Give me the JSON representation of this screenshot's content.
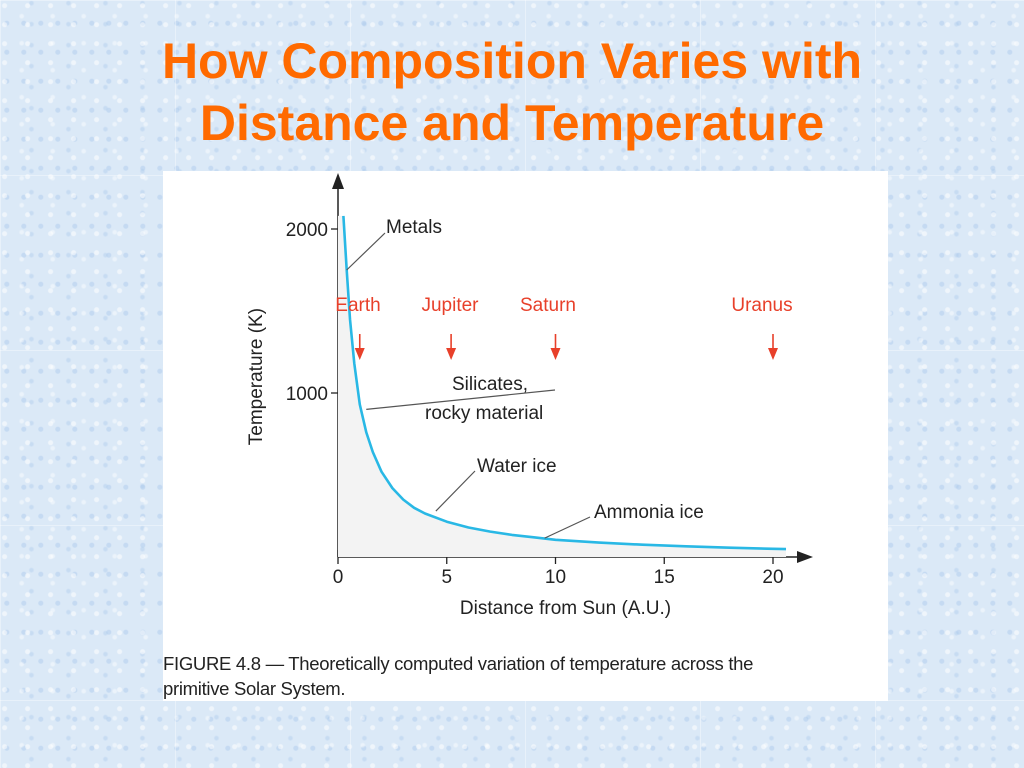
{
  "slide": {
    "title_line1": "How Composition Varies with",
    "title_line2": "Distance and Temperature",
    "title_color": "#ff6a00"
  },
  "figure": {
    "caption_line1": "FIGURE 4.8 — Theoretically computed variation of temperature across the",
    "caption_line2": "primitive Solar System."
  },
  "chart_data": {
    "type": "line",
    "title": "",
    "xlabel": "Distance from Sun (A.U.)",
    "ylabel": "Temperature (K)",
    "xlim": [
      0,
      21
    ],
    "ylim": [
      0,
      2100
    ],
    "x_ticks": [
      0,
      5,
      10,
      15,
      20
    ],
    "y_ticks": [
      1000,
      2000
    ],
    "grid": false,
    "line_color": "#29b8e5",
    "series": [
      {
        "x": [
          0.25,
          0.4,
          0.55,
          0.75,
          1.0,
          1.3,
          1.6,
          2.0,
          2.5,
          3.0,
          3.5,
          4.0,
          5.0,
          6.0,
          7.0,
          8.0,
          9.0,
          10.0,
          12.0,
          14.0,
          16.0,
          18.0,
          20.0,
          20.6
        ],
        "y": [
          2080,
          1750,
          1450,
          1180,
          930,
          760,
          640,
          520,
          420,
          350,
          300,
          265,
          215,
          180,
          155,
          135,
          120,
          105,
          88,
          75,
          65,
          57,
          50,
          48
        ]
      }
    ],
    "annotations": [
      {
        "text": "Metals",
        "x": 0.4,
        "y": 1750
      },
      {
        "text": "Silicates,",
        "x": 1.3,
        "y": 900
      },
      {
        "text": "rocky material",
        "x": 1.3,
        "y": 900
      },
      {
        "text": "Water ice",
        "x": 4.5,
        "y": 280
      },
      {
        "text": "Ammonia ice",
        "x": 9.5,
        "y": 115
      }
    ],
    "planets": [
      {
        "name": "Earth",
        "x": 1.0
      },
      {
        "name": "Jupiter",
        "x": 5.2
      },
      {
        "name": "Saturn",
        "x": 10.0
      },
      {
        "name": "Uranus",
        "x": 20.0
      }
    ],
    "planet_color": "#e8402a"
  }
}
